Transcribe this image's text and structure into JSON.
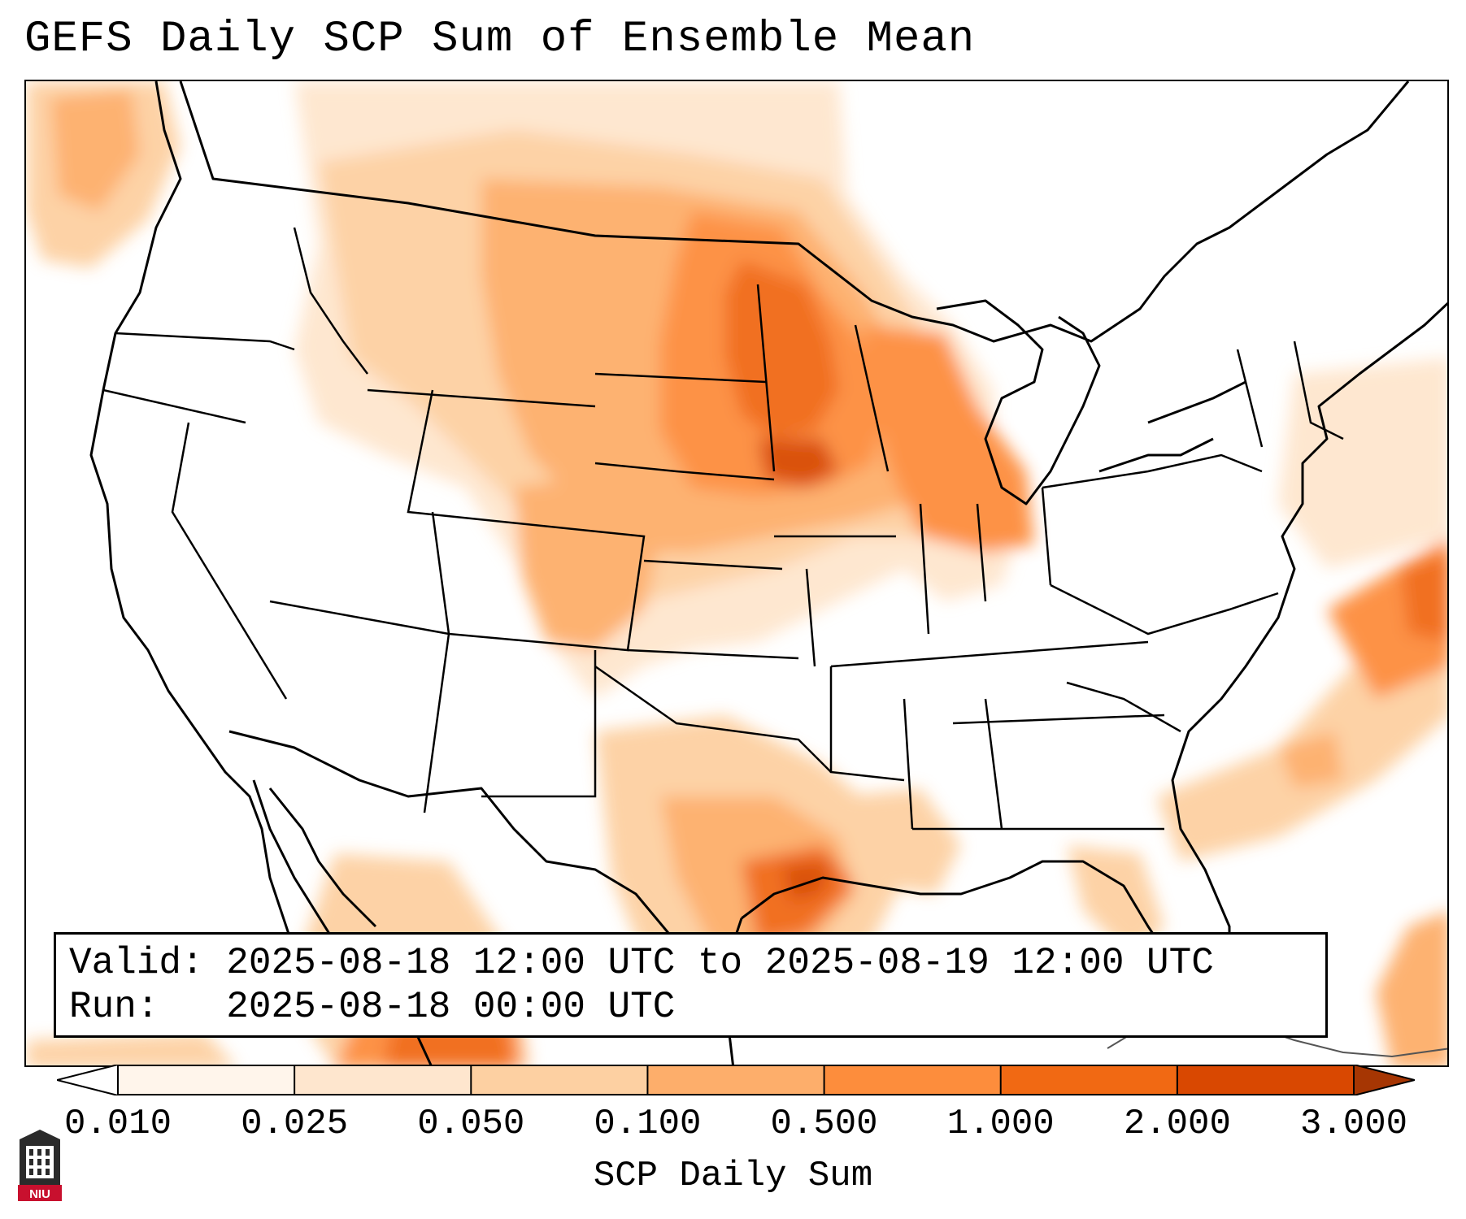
{
  "title": "GEFS Daily SCP Sum of Ensemble Mean",
  "info": {
    "valid_label": "Valid:",
    "valid_value": "2025-08-18 12:00 UTC to 2025-08-19 12:00 UTC",
    "run_label": "Run:",
    "run_value": "2025-08-18 00:00 UTC"
  },
  "colorbar": {
    "label": "SCP Daily Sum",
    "ticks": [
      "0.010",
      "0.025",
      "0.050",
      "0.100",
      "0.500",
      "1.000",
      "2.000",
      "3.000"
    ],
    "colors": [
      "#fff5eb",
      "#fee6ce",
      "#fdd0a2",
      "#fdae6b",
      "#fd8d3c",
      "#f16913",
      "#d94801",
      "#a63603"
    ]
  },
  "logo": {
    "text": "NIU",
    "icon": "niu-logo-icon"
  },
  "regions": [
    {
      "name": "north-dakota-max",
      "level": 5
    },
    {
      "name": "minnesota-max",
      "level": 5
    },
    {
      "name": "iowa-max",
      "level": 6
    },
    {
      "name": "nebraska-max",
      "level": 5
    },
    {
      "name": "texas-gulf-coast-max",
      "level": 6
    },
    {
      "name": "western-atlantic-max",
      "level": 5
    },
    {
      "name": "mexico-south-max",
      "level": 6
    }
  ]
}
